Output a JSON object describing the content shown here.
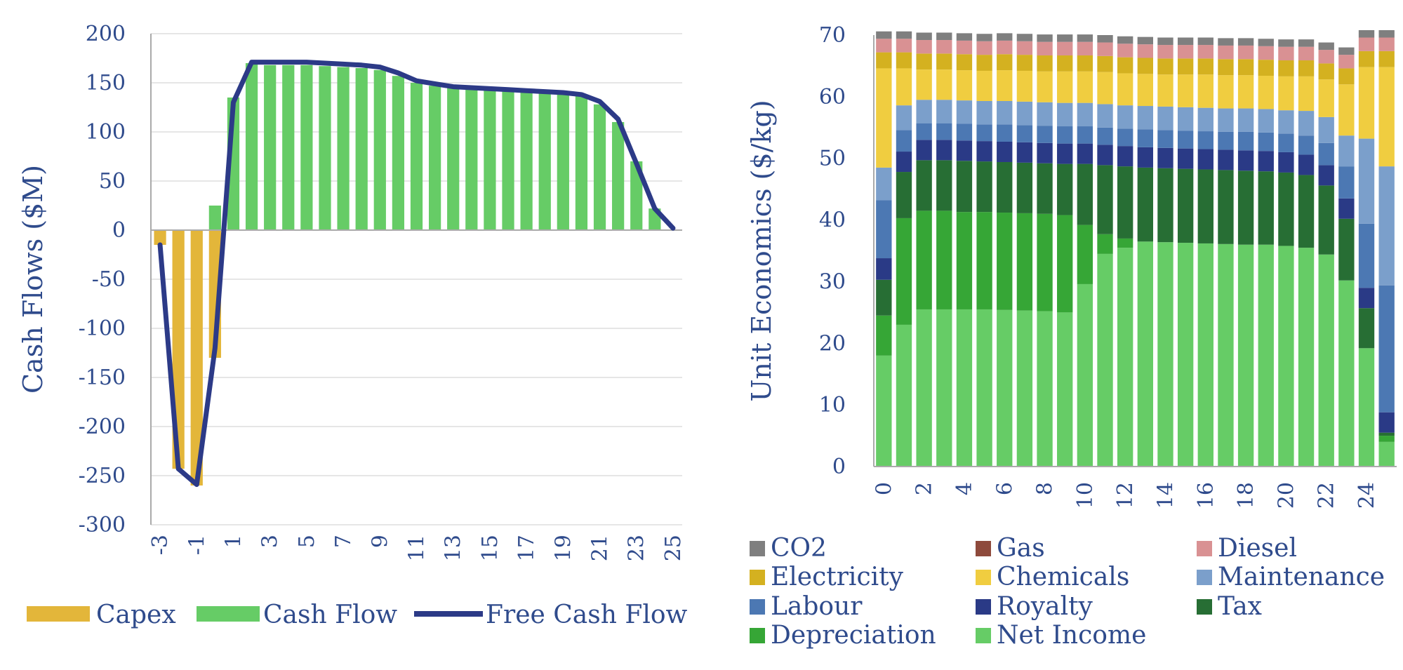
{
  "colors": {
    "text": "#2f4b8c",
    "grid": "#e6e6e6",
    "axis": "#aaaaaa",
    "capex": "#e3b63a",
    "cash_flow": "#66cc66",
    "free_cash_flow": "#2c3a87",
    "CO2": "#7f7f7f",
    "Gas": "#8e4a3c",
    "Diesel": "#d99193",
    "Electricity": "#d4b120",
    "Chemicals": "#f0cd40",
    "Maintenance": "#7b9fcb",
    "Labour": "#4c78b3",
    "Royalty": "#2a3a86",
    "Tax": "#276e34",
    "Depreciation": "#36a636",
    "Net Income": "#66cc66"
  },
  "chart_data": [
    {
      "type": "bar",
      "ylabel": "Cash Flows ($M)",
      "ylim": [
        -300,
        200
      ],
      "yticks": [
        200,
        150,
        100,
        50,
        0,
        -50,
        -100,
        -150,
        -200,
        -250,
        -300
      ],
      "x": [
        -3,
        -2,
        -1,
        0,
        1,
        2,
        3,
        4,
        5,
        6,
        7,
        8,
        9,
        10,
        11,
        12,
        13,
        14,
        15,
        16,
        17,
        18,
        19,
        20,
        21,
        22,
        23,
        24,
        25
      ],
      "xtick_labels": [
        "-3",
        "-1",
        "1",
        "3",
        "5",
        "7",
        "9",
        "11",
        "13",
        "15",
        "17",
        "19",
        "21",
        "23",
        "25"
      ],
      "legend": "bottom",
      "series": [
        {
          "name": "Capex",
          "key": "capex",
          "values": [
            -15,
            -243,
            -260,
            -130,
            0,
            0,
            0,
            0,
            0,
            0,
            0,
            0,
            0,
            0,
            0,
            0,
            0,
            0,
            0,
            0,
            0,
            0,
            0,
            0,
            0,
            0,
            0,
            0,
            0
          ]
        },
        {
          "name": "Cash Flow",
          "key": "cash_flow",
          "values": [
            0,
            0,
            0,
            25,
            135,
            170,
            168,
            168,
            168,
            167,
            166,
            165,
            163,
            157,
            150,
            147,
            145,
            144,
            142,
            141,
            140,
            139,
            138,
            137,
            128,
            110,
            70,
            22,
            0
          ]
        },
        {
          "name": "Free Cash Flow",
          "key": "free_cash_flow",
          "type": "line",
          "values": [
            -15,
            -243,
            -259,
            -120,
            130,
            171,
            171,
            171,
            171,
            170,
            169,
            168,
            166,
            160,
            152,
            149,
            146,
            145,
            144,
            143,
            142,
            141,
            140,
            138,
            131,
            113,
            68,
            22,
            2
          ]
        }
      ]
    },
    {
      "type": "bar",
      "stacked": true,
      "ylabel": "Unit Economics ($/kg)",
      "ylim": [
        0,
        70
      ],
      "yticks": [
        70,
        60,
        50,
        40,
        30,
        20,
        10,
        0
      ],
      "categories": [
        0,
        1,
        2,
        3,
        4,
        5,
        6,
        7,
        8,
        9,
        10,
        11,
        12,
        13,
        14,
        15,
        16,
        17,
        18,
        19,
        20,
        21,
        22,
        23,
        24,
        25
      ],
      "xtick_labels": [
        "0",
        "2",
        "4",
        "6",
        "8",
        "10",
        "12",
        "14",
        "16",
        "18",
        "20",
        "22",
        "24"
      ],
      "legend": "bottom",
      "series": [
        {
          "name": "Net Income",
          "values": [
            18,
            23,
            25.5,
            25.5,
            25.5,
            25.5,
            25.4,
            25.3,
            25.2,
            25.0,
            29.6,
            34.5,
            35.5,
            36.5,
            36.4,
            36.3,
            36.2,
            36.1,
            36.0,
            36.0,
            35.8,
            35.5,
            34.4,
            30.2,
            19.2,
            4.0
          ]
        },
        {
          "name": "Depreciation",
          "values": [
            6.5,
            17.3,
            16.0,
            16.0,
            15.8,
            15.8,
            15.8,
            15.8,
            15.8,
            15.8,
            9.6,
            3.2,
            1.5,
            0,
            0,
            0,
            0,
            0,
            0,
            0,
            0,
            0,
            0,
            0,
            0,
            1.0
          ]
        },
        {
          "name": "Tax",
          "values": [
            5.8,
            7.5,
            8.2,
            8.2,
            8.3,
            8.2,
            8.2,
            8.2,
            8.2,
            8.3,
            9.9,
            11.2,
            11.7,
            12.0,
            12.0,
            12.0,
            12.0,
            12.0,
            12.0,
            11.9,
            11.9,
            11.8,
            11.2,
            10.0,
            6.5,
            0.5
          ]
        },
        {
          "name": "Royalty",
          "values": [
            3.5,
            3.3,
            3.3,
            3.3,
            3.3,
            3.3,
            3.3,
            3.3,
            3.3,
            3.3,
            3.3,
            3.3,
            3.3,
            3.3,
            3.3,
            3.3,
            3.3,
            3.3,
            3.3,
            3.3,
            3.3,
            3.3,
            3.3,
            3.3,
            3.3,
            3.3
          ]
        },
        {
          "name": "Labour",
          "values": [
            9.4,
            3.5,
            2.7,
            2.7,
            2.7,
            2.7,
            2.8,
            2.8,
            2.8,
            2.8,
            2.8,
            2.8,
            2.8,
            2.9,
            2.9,
            2.9,
            2.9,
            2.9,
            3.0,
            3.0,
            3.0,
            3.1,
            3.6,
            5.2,
            10.4,
            20.6
          ]
        },
        {
          "name": "Maintenance",
          "values": [
            5.3,
            4.0,
            3.8,
            3.8,
            3.8,
            3.8,
            3.8,
            3.8,
            3.8,
            3.8,
            3.8,
            3.8,
            3.8,
            3.8,
            3.8,
            3.8,
            3.8,
            3.8,
            3.8,
            3.8,
            3.8,
            4.0,
            4.2,
            5.0,
            13.8,
            19.3
          ]
        },
        {
          "name": "Chemicals",
          "values": [
            16.1,
            6.0,
            4.9,
            4.9,
            4.9,
            4.9,
            5.0,
            5.0,
            5.0,
            5.1,
            5.1,
            5.2,
            5.2,
            5.2,
            5.2,
            5.3,
            5.4,
            5.4,
            5.4,
            5.4,
            5.5,
            5.6,
            6.1,
            8.3,
            11.6,
            16.1
          ]
        },
        {
          "name": "Electricity",
          "values": [
            2.6,
            2.6,
            2.6,
            2.6,
            2.6,
            2.6,
            2.6,
            2.6,
            2.6,
            2.6,
            2.6,
            2.6,
            2.6,
            2.6,
            2.6,
            2.6,
            2.6,
            2.6,
            2.6,
            2.6,
            2.6,
            2.6,
            2.6,
            2.6,
            2.6,
            2.6
          ]
        },
        {
          "name": "Diesel",
          "values": [
            2.2,
            2.2,
            2.2,
            2.2,
            2.2,
            2.2,
            2.2,
            2.2,
            2.2,
            2.2,
            2.2,
            2.2,
            2.2,
            2.2,
            2.2,
            2.2,
            2.2,
            2.2,
            2.2,
            2.2,
            2.2,
            2.2,
            2.2,
            2.2,
            2.2,
            2.2
          ]
        },
        {
          "name": "Gas",
          "values": [
            0,
            0,
            0,
            0,
            0,
            0,
            0,
            0,
            0,
            0,
            0,
            0,
            0,
            0,
            0,
            0,
            0,
            0,
            0,
            0,
            0,
            0,
            0,
            0,
            0,
            0
          ]
        },
        {
          "name": "CO2",
          "values": [
            1.2,
            1.2,
            1.2,
            1.2,
            1.2,
            1.2,
            1.2,
            1.2,
            1.2,
            1.2,
            1.2,
            1.2,
            1.2,
            1.2,
            1.2,
            1.2,
            1.2,
            1.2,
            1.2,
            1.2,
            1.2,
            1.2,
            1.2,
            1.2,
            1.2,
            1.2
          ]
        }
      ],
      "legend_order": [
        "CO2",
        "Gas",
        "Diesel",
        "Electricity",
        "Chemicals",
        "Maintenance",
        "Labour",
        "Royalty",
        "Tax",
        "Depreciation",
        "Net Income"
      ]
    }
  ]
}
